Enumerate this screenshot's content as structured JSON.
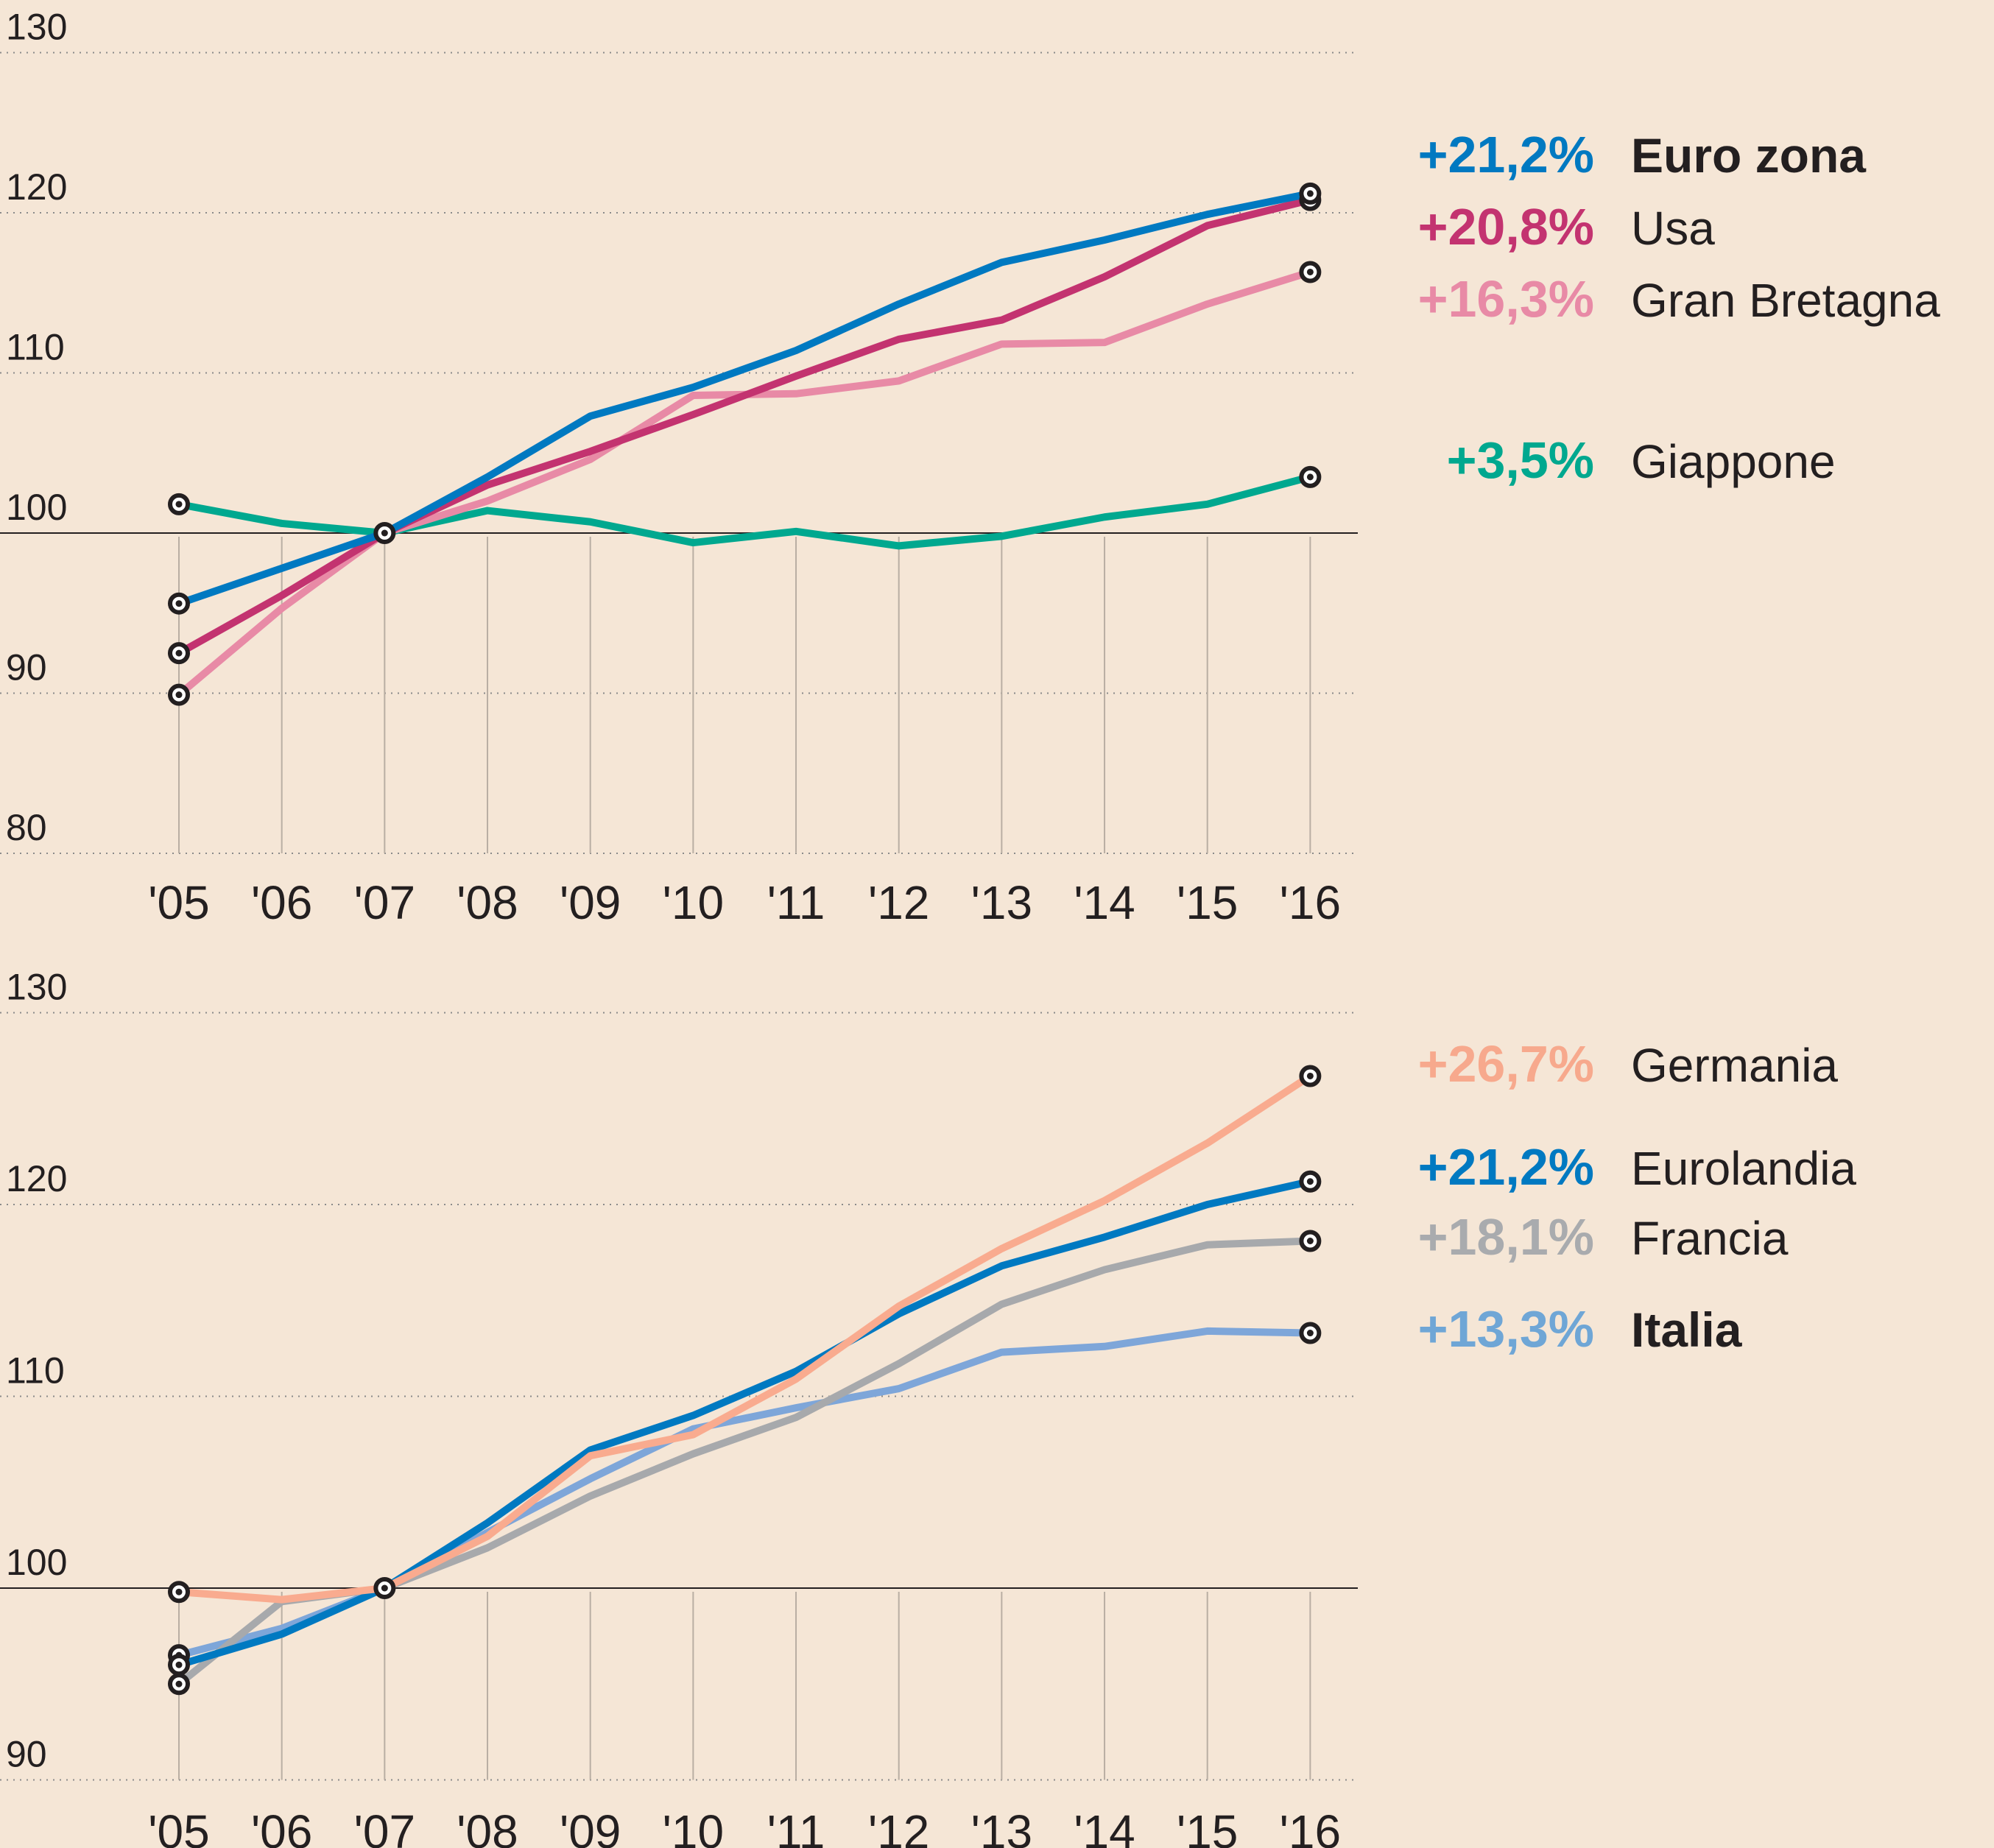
{
  "chart_data": [
    {
      "type": "line",
      "title": "",
      "xlabel": "",
      "ylabel": "",
      "x": [
        "'05",
        "'06",
        "'07",
        "'08",
        "'09",
        "'10",
        "'11",
        "'12",
        "'13",
        "'14",
        "'15",
        "'16"
      ],
      "ylim": [
        80,
        130
      ],
      "yticks": [
        80,
        90,
        100,
        110,
        120,
        130
      ],
      "baseline": 100,
      "grid": true,
      "legend_position": "right",
      "series": [
        {
          "name": "Euro zona",
          "label": "+21,2%",
          "color": "#0079c1",
          "bold_name": true,
          "values": [
            95.6,
            97.8,
            100,
            103.5,
            107.3,
            109.1,
            111.4,
            114.3,
            116.9,
            118.3,
            119.9,
            121.2
          ]
        },
        {
          "name": "Usa",
          "label": "+20,8%",
          "color": "#c33370",
          "bold_name": false,
          "values": [
            92.5,
            96.1,
            100,
            103.0,
            105.1,
            107.4,
            109.8,
            112.1,
            113.3,
            116.0,
            119.2,
            120.8
          ]
        },
        {
          "name": "Gran Bretagna",
          "label": "+16,3%",
          "color": "#e88aa6",
          "bold_name": false,
          "values": [
            89.9,
            95.3,
            100,
            102.0,
            104.6,
            108.6,
            108.7,
            109.5,
            111.8,
            111.9,
            114.3,
            116.3
          ]
        },
        {
          "name": "Giappone",
          "label": "+3,5%",
          "color": "#00a88f",
          "bold_name": false,
          "values": [
            101.8,
            100.6,
            100,
            101.4,
            100.7,
            99.4,
            100.1,
            99.2,
            99.8,
            101.0,
            101.8,
            103.5
          ]
        }
      ]
    },
    {
      "type": "line",
      "title": "",
      "xlabel": "",
      "ylabel": "",
      "x": [
        "'05",
        "'06",
        "'07",
        "'08",
        "'09",
        "'10",
        "'11",
        "'12",
        "'13",
        "'14",
        "'15",
        "'16"
      ],
      "ylim": [
        90,
        130
      ],
      "yticks": [
        90,
        100,
        110,
        120,
        130
      ],
      "baseline": 100,
      "grid": true,
      "legend_position": "right",
      "series": [
        {
          "name": "Germania",
          "label": "+26,7%",
          "color": "#f9ab8f",
          "bold_name": false,
          "values": [
            99.8,
            99.4,
            100,
            102.7,
            106.9,
            108.0,
            110.9,
            114.7,
            117.7,
            120.2,
            123.2,
            126.7
          ]
        },
        {
          "name": "Eurolandia",
          "label": "+21,2%",
          "color": "#0079c1",
          "bold_name": false,
          "values": [
            96.0,
            97.6,
            100,
            103.4,
            107.2,
            109.0,
            111.3,
            114.3,
            116.8,
            118.3,
            120.0,
            121.2
          ]
        },
        {
          "name": "Francia",
          "label": "+18,1%",
          "color": "#a7a9ac",
          "bold_name": false,
          "values": [
            95.0,
            99.3,
            100,
            102.1,
            104.8,
            107.0,
            108.9,
            111.7,
            114.8,
            116.6,
            117.9,
            118.1
          ]
        },
        {
          "name": "Italia",
          "label": "+13,3%",
          "color": "#7ea6d9",
          "bold_name": true,
          "values": [
            96.5,
            97.9,
            100,
            102.9,
            105.7,
            108.3,
            109.4,
            110.4,
            112.3,
            112.6,
            113.4,
            113.3
          ]
        }
      ]
    }
  ],
  "colors": {
    "background": "#f5e6d6",
    "text": "#231f20",
    "gridline": "#8a8a8a",
    "vertical_guides": "#b9aea3",
    "baseline": "#231f20"
  },
  "legend_label_colors": {
    "Germania": "#f7a98d",
    "Francia": "#a9abae",
    "Italia": "#6fa6d6"
  }
}
